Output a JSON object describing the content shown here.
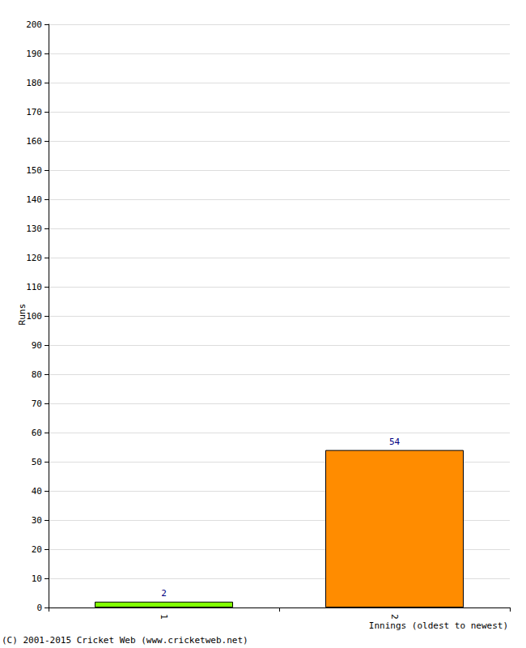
{
  "chart_data": {
    "type": "bar",
    "categories": [
      "1",
      "2"
    ],
    "values": [
      2,
      54
    ],
    "colors": [
      "#80ff00",
      "#ff8c00"
    ],
    "ylim": [
      0,
      200
    ],
    "yticks": [
      0,
      10,
      20,
      30,
      40,
      50,
      60,
      70,
      80,
      90,
      100,
      110,
      120,
      130,
      140,
      150,
      160,
      170,
      180,
      190,
      200
    ],
    "grid": true,
    "data_labels": true,
    "y_label": "Runs",
    "x_label": "Innings (oldest to newest)",
    "annotations": [
      "(C) 2001-2015 Cricket Web (www.cricketweb.net)"
    ]
  }
}
